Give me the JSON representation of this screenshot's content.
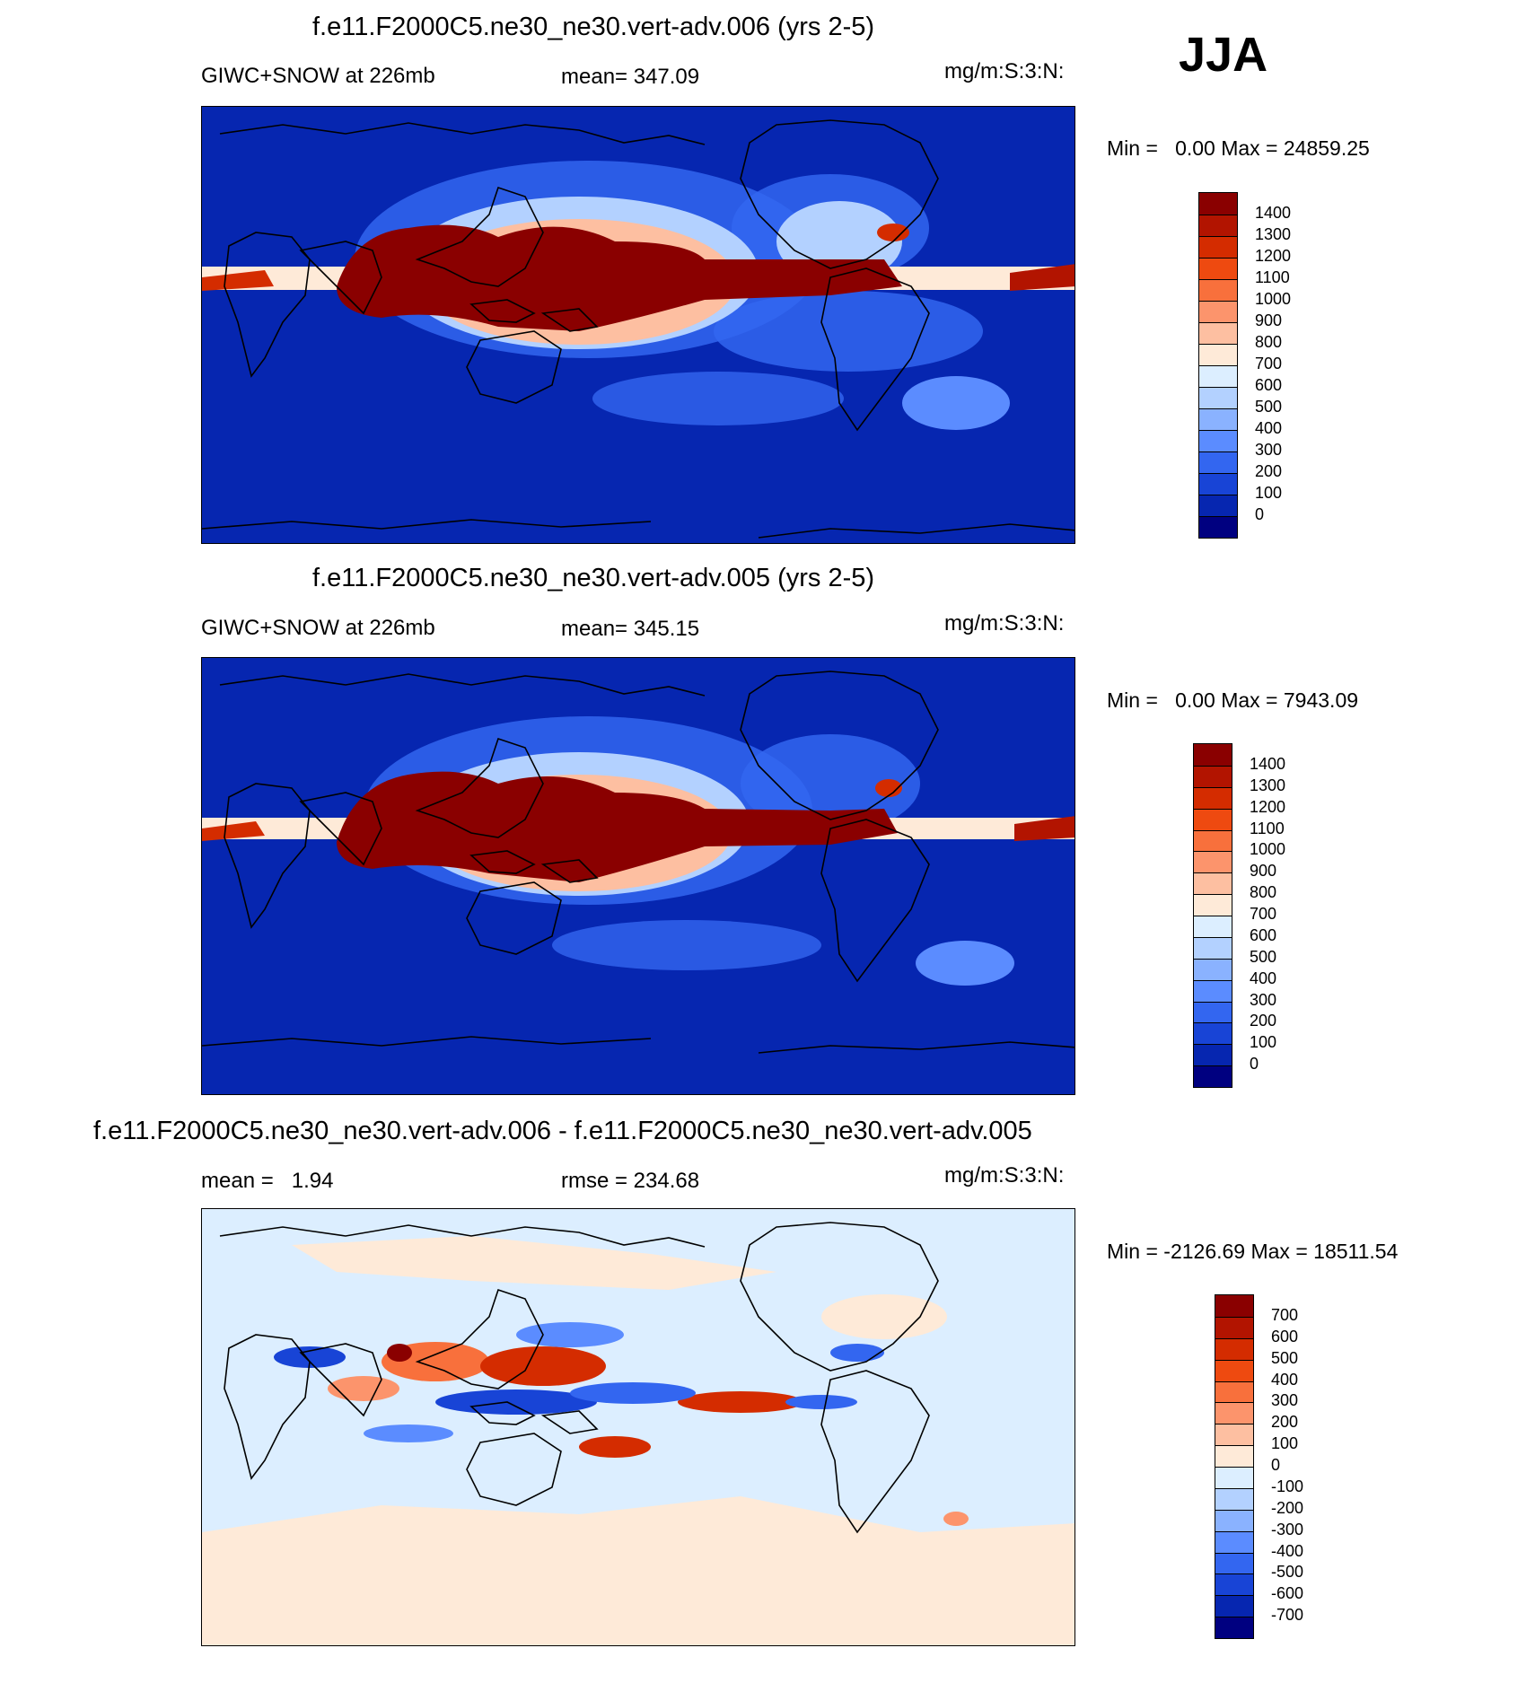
{
  "season_label": "JJA",
  "panels": [
    {
      "id": "case",
      "title": "f.e11.F2000C5.ne30_ne30.vert-adv.006 (yrs 2-5)",
      "left_label": "GIWC+SNOW at 226mb",
      "center_label": "mean= 347.09",
      "right_label": "mg/m:S:3:N:",
      "min_label": "Min =",
      "min_value": "0.00",
      "max_label": "Max =",
      "max_value": "24859.25",
      "colorbar_labels": [
        "1400",
        "1300",
        "1200",
        "1100",
        "1000",
        "900",
        "800",
        "700",
        "600",
        "500",
        "400",
        "300",
        "200",
        "100",
        "0"
      ],
      "colorbar_colors": [
        "#8a0000",
        "#b21400",
        "#d42c00",
        "#ee4a10",
        "#f8703c",
        "#fc946c",
        "#fdbfa1",
        "#feead8",
        "#dceeff",
        "#b3d1ff",
        "#8ab2ff",
        "#5b8cff",
        "#3366f0",
        "#1844d6",
        "#0626b0",
        "#000080"
      ]
    },
    {
      "id": "control",
      "title": "f.e11.F2000C5.ne30_ne30.vert-adv.005 (yrs 2-5)",
      "left_label": "GIWC+SNOW at 226mb",
      "center_label": "mean= 345.15",
      "right_label": "mg/m:S:3:N:",
      "min_label": "Min =",
      "min_value": "0.00",
      "max_label": "Max =",
      "max_value": "7943.09",
      "colorbar_labels": [
        "1400",
        "1300",
        "1200",
        "1100",
        "1000",
        "900",
        "800",
        "700",
        "600",
        "500",
        "400",
        "300",
        "200",
        "100",
        "0"
      ],
      "colorbar_colors": [
        "#8a0000",
        "#b21400",
        "#d42c00",
        "#ee4a10",
        "#f8703c",
        "#fc946c",
        "#fdbfa1",
        "#feead8",
        "#dceeff",
        "#b3d1ff",
        "#8ab2ff",
        "#5b8cff",
        "#3366f0",
        "#1844d6",
        "#0626b0",
        "#000080"
      ]
    },
    {
      "id": "difference",
      "title": "f.e11.F2000C5.ne30_ne30.vert-adv.006 - f.e11.F2000C5.ne30_ne30.vert-adv.005",
      "left_label": "mean =   1.94",
      "center_label": "rmse = 234.68",
      "right_label": "mg/m:S:3:N:",
      "min_label": "Min =",
      "min_value": "-2126.69",
      "max_label": "Max =",
      "max_value": "18511.54",
      "colorbar_labels": [
        "700",
        "600",
        "500",
        "400",
        "300",
        "200",
        "100",
        "0",
        "-100",
        "-200",
        "-300",
        "-400",
        "-500",
        "-600",
        "-700"
      ],
      "colorbar_colors": [
        "#8a0000",
        "#b21400",
        "#d42c00",
        "#ee4a10",
        "#f8703c",
        "#fc946c",
        "#fdbfa1",
        "#feead8",
        "#dceeff",
        "#b3d1ff",
        "#8ab2ff",
        "#5b8cff",
        "#3366f0",
        "#1844d6",
        "#0626b0",
        "#000080"
      ]
    }
  ],
  "map_colors": {
    "background_abs": "#0626b0",
    "background_diff": "#dceeff",
    "diff_positive_bg": "#feead8",
    "coastline": "#000000"
  }
}
